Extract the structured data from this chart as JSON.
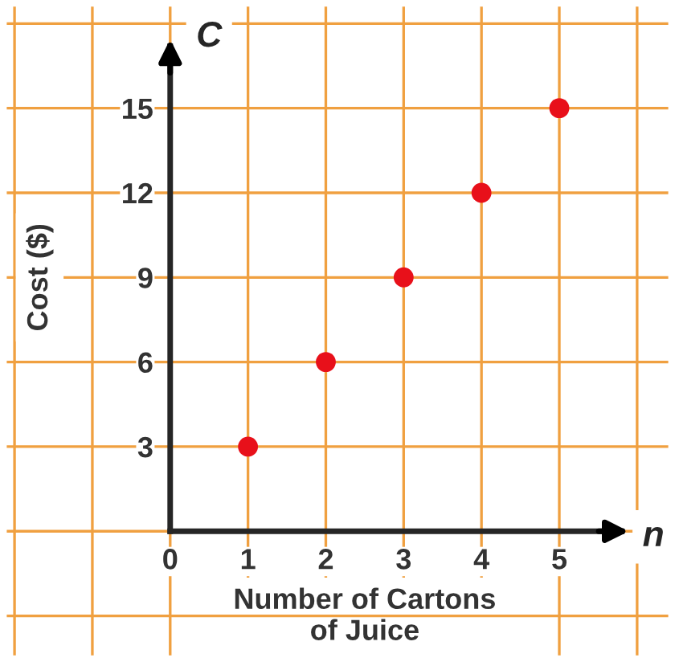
{
  "chart_data": {
    "type": "scatter",
    "x": [
      1,
      2,
      3,
      4,
      5
    ],
    "series": [
      {
        "color": "#e8101a",
        "values": [
          3,
          6,
          9,
          12,
          15
        ]
      }
    ],
    "xlabel": "Number of Cartons\nof Juice",
    "ylabel": "Cost ($)",
    "annotations": [
      "C",
      "n"
    ],
    "xlim": [
      -2.1,
      6.4
    ],
    "ylim": [
      -4.4,
      18.6
    ],
    "xticks": [
      {
        "value": -2,
        "label": null
      },
      {
        "value": -1,
        "label": null
      },
      0,
      1,
      2,
      3,
      4,
      5,
      {
        "value": 6,
        "label": null
      }
    ],
    "yticks": [
      {
        "value": -3,
        "label": null
      },
      {
        "value": 0,
        "label": null
      },
      3,
      6,
      9,
      12,
      15,
      {
        "value": 18,
        "label": null
      }
    ],
    "grid": true,
    "marker": "circle",
    "legend": false
  }
}
